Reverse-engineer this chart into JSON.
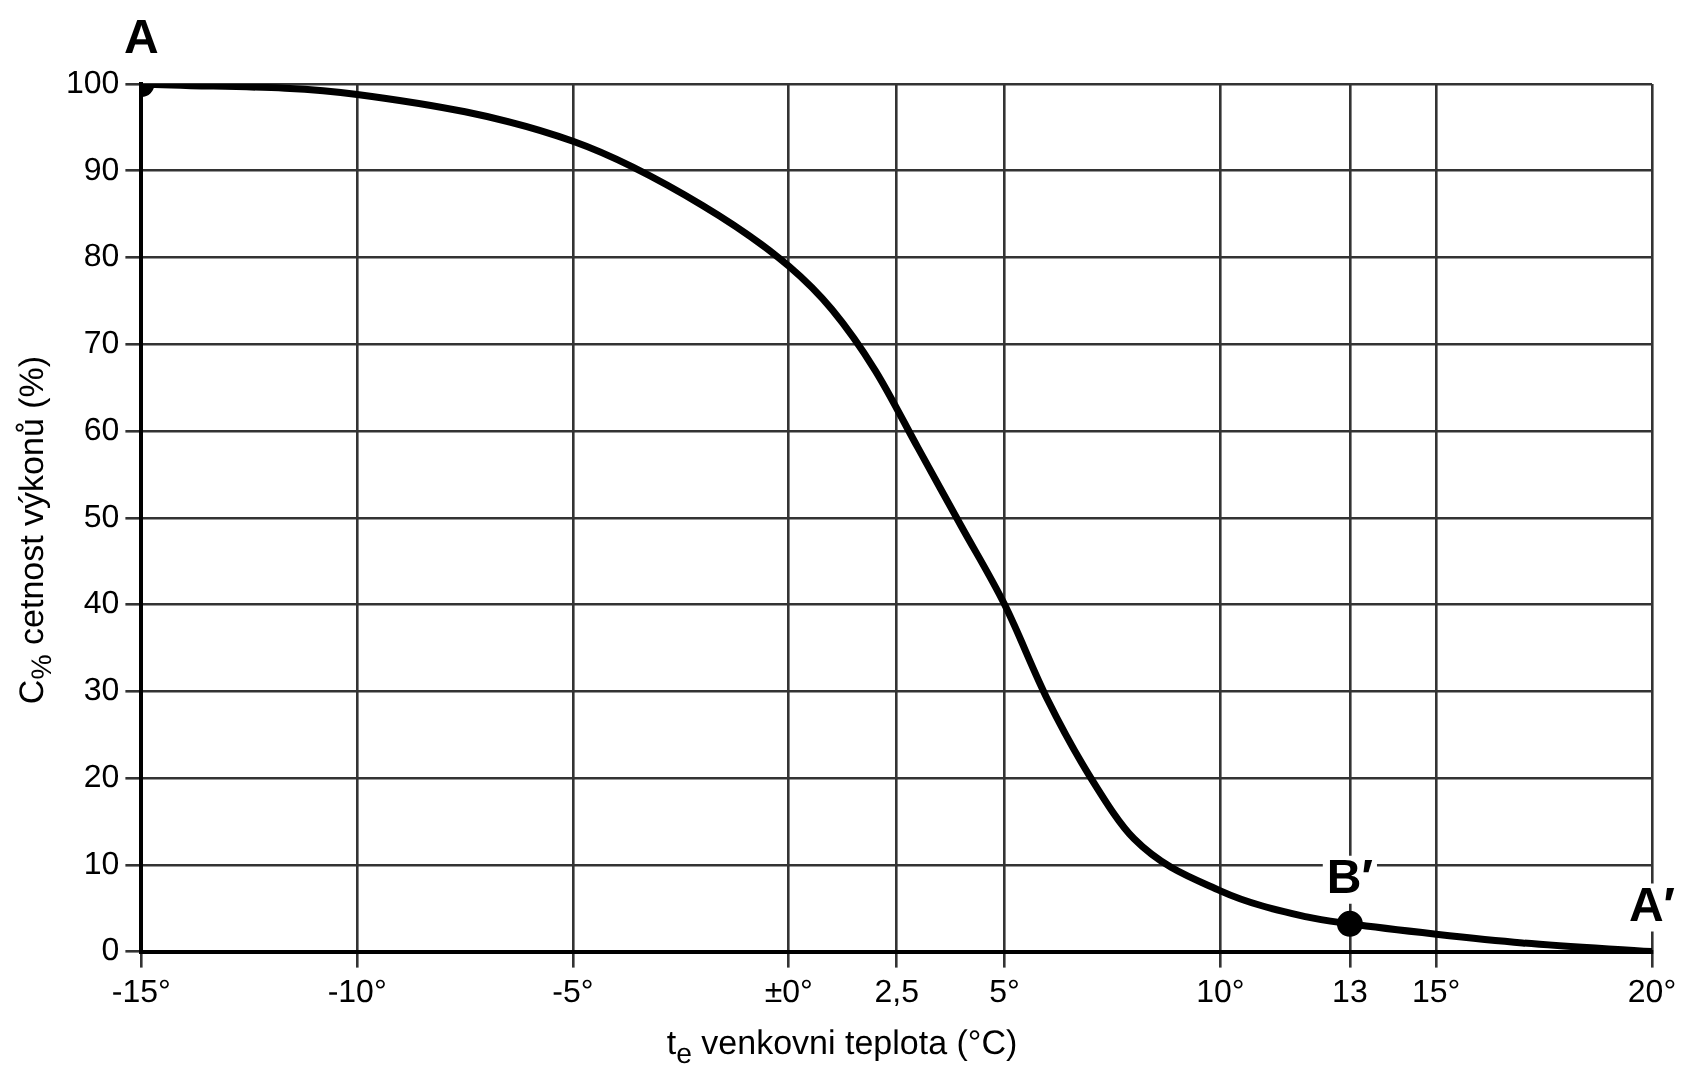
{
  "chart_data": {
    "type": "line",
    "xlabel": "t$_{e}$ venkovni teplota (°C)",
    "ylabel": "C$_{%}$ cetnost výkonů (%)",
    "xlim": [
      -15,
      20
    ],
    "xticks": [
      {
        "value": -15,
        "label": "-15°"
      },
      {
        "value": -10,
        "label": "-10°"
      },
      {
        "value": -5,
        "label": "-5°"
      },
      {
        "value": 0,
        "label": "±0°"
      },
      {
        "value": 2.5,
        "label": "2,5"
      },
      {
        "value": 5,
        "label": "5°"
      },
      {
        "value": 10,
        "label": "10°"
      },
      {
        "value": 13,
        "label": "13"
      },
      {
        "value": 15,
        "label": "15°"
      },
      {
        "value": 20,
        "label": "20°"
      }
    ],
    "ylim": [
      0,
      100
    ],
    "yticks": [
      0,
      10,
      20,
      30,
      40,
      50,
      60,
      70,
      80,
      90,
      100
    ],
    "grid": true,
    "legend": false,
    "series": [
      {
        "type": "line",
        "color": "#000000",
        "marker": "none",
        "x": [
          -15,
          -10,
          -5,
          -2,
          0,
          1,
          2,
          3,
          4,
          5,
          6,
          7,
          8,
          10,
          12,
          13,
          15,
          17,
          20
        ],
        "values": [
          100,
          98.8,
          93.4,
          86,
          79,
          74,
          67,
          58,
          49,
          40,
          29,
          20,
          13,
          7,
          4,
          3.2,
          2,
          1,
          0
        ]
      },
      {
        "type": "scatter",
        "color": "#000000",
        "marker": "circle",
        "x": [
          -15,
          13
        ],
        "values": [
          100,
          3.2
        ]
      }
    ],
    "annotations": [
      {
        "text": "A",
        "x": -15,
        "y": 100
      },
      {
        "text": "B′",
        "x": 13,
        "y": 3.2
      },
      {
        "text": "A′",
        "x": 20,
        "y": 0
      }
    ]
  }
}
